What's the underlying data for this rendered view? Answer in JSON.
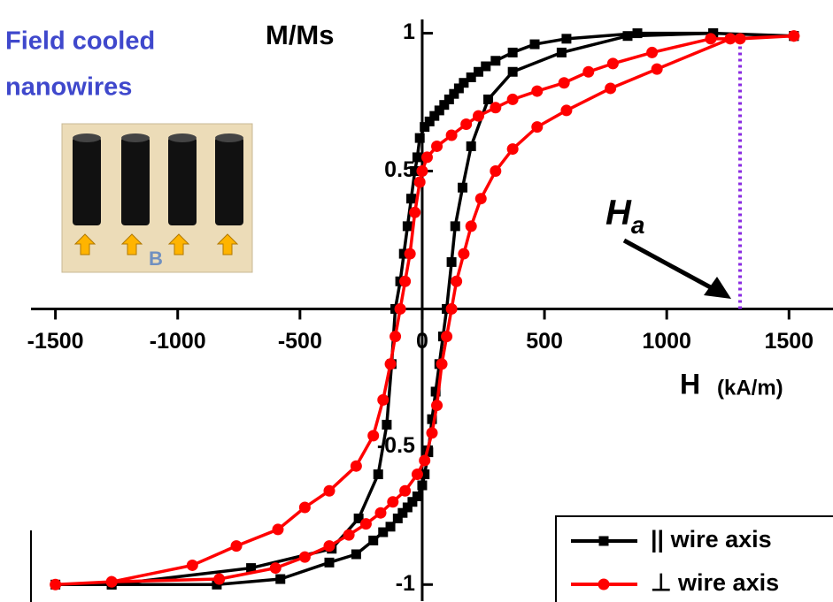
{
  "chart_data": {
    "type": "line",
    "annotation_lines": [
      "Field cooled",
      "nanowires"
    ],
    "inset_label": "B",
    "ylabel": "M/Ms",
    "xlabel": "H",
    "xlabel_unit": "(kA/m)",
    "ha_label": {
      "main": "H",
      "sub": "a"
    },
    "ha_x": 1300,
    "ha_y": [
      0,
      0.99
    ],
    "ha_color": "#8a2be2",
    "xlim": [
      -1600,
      1680
    ],
    "ylim": [
      -1.06,
      1.05
    ],
    "xticks": [
      -1500,
      -1000,
      -500,
      0,
      500,
      1000,
      1500
    ],
    "yticks": [
      -1,
      -0.5,
      0.5,
      1
    ],
    "legend": "lower right",
    "series": [
      {
        "name": "|| wire axis",
        "color": "#000000",
        "marker": "square",
        "x": [
          1520,
          1190,
          880,
          590,
          460,
          370,
          300,
          260,
          230,
          200,
          170,
          150,
          130,
          110,
          90,
          70,
          50,
          30,
          10,
          -10,
          -20,
          -30,
          -45,
          -60,
          -75,
          -90,
          -110,
          -125,
          -145,
          -180,
          -260,
          -370,
          -700,
          -1270,
          -1500,
          -1270,
          -840,
          -580,
          -380,
          -270,
          -200,
          -160,
          -130,
          -100,
          -80,
          -60,
          -40,
          -20,
          0,
          10,
          25,
          40,
          55,
          70,
          85,
          100,
          120,
          135,
          165,
          200,
          270,
          370,
          570,
          840,
          1190,
          1520
        ],
        "values": [
          0.99,
          1.0,
          1.0,
          0.98,
          0.96,
          0.93,
          0.9,
          0.88,
          0.86,
          0.84,
          0.82,
          0.8,
          0.78,
          0.76,
          0.74,
          0.72,
          0.7,
          0.68,
          0.66,
          0.62,
          0.55,
          0.5,
          0.4,
          0.3,
          0.2,
          0.1,
          0.0,
          -0.2,
          -0.42,
          -0.6,
          -0.76,
          -0.87,
          -0.94,
          -1.0,
          -1.0,
          -1.0,
          -1.0,
          -0.98,
          -0.92,
          -0.89,
          -0.84,
          -0.81,
          -0.79,
          -0.76,
          -0.74,
          -0.72,
          -0.7,
          -0.68,
          -0.64,
          -0.6,
          -0.52,
          -0.4,
          -0.3,
          -0.2,
          -0.1,
          0.0,
          0.17,
          0.3,
          0.44,
          0.59,
          0.76,
          0.86,
          0.93,
          0.99,
          1.0,
          0.99
        ]
      },
      {
        "name": "⊥ wire axis",
        "color": "#ff0000",
        "marker": "circle",
        "x": [
          1520,
          1300,
          1180,
          940,
          780,
          680,
          580,
          470,
          370,
          300,
          230,
          180,
          120,
          60,
          20,
          0,
          -10,
          -30,
          -50,
          -70,
          -90,
          -110,
          -130,
          -160,
          -200,
          -270,
          -380,
          -480,
          -590,
          -760,
          -940,
          -1270,
          -1500,
          -1270,
          -830,
          -600,
          -480,
          -380,
          -300,
          -230,
          -170,
          -120,
          -70,
          -20,
          10,
          40,
          60,
          80,
          100,
          120,
          140,
          170,
          200,
          240,
          300,
          370,
          470,
          590,
          770,
          960,
          1260,
          1520
        ],
        "values": [
          0.99,
          0.98,
          0.98,
          0.93,
          0.89,
          0.86,
          0.82,
          0.79,
          0.76,
          0.73,
          0.7,
          0.67,
          0.63,
          0.59,
          0.55,
          0.5,
          0.46,
          0.35,
          0.2,
          0.1,
          0.0,
          -0.1,
          -0.2,
          -0.33,
          -0.46,
          -0.57,
          -0.66,
          -0.72,
          -0.8,
          -0.86,
          -0.93,
          -0.99,
          -1.0,
          -0.99,
          -0.98,
          -0.94,
          -0.9,
          -0.86,
          -0.82,
          -0.78,
          -0.74,
          -0.7,
          -0.66,
          -0.6,
          -0.55,
          -0.45,
          -0.35,
          -0.2,
          -0.1,
          0.0,
          0.1,
          0.2,
          0.3,
          0.4,
          0.5,
          0.58,
          0.66,
          0.72,
          0.8,
          0.87,
          0.98,
          0.99
        ]
      }
    ]
  }
}
